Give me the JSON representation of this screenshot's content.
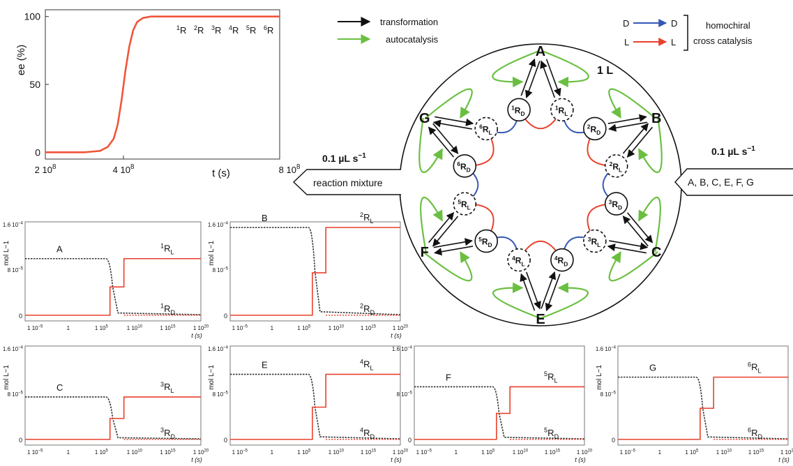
{
  "legend": {
    "transformation": "transformation",
    "autocatalysis": "autocatalysis",
    "d_from": "D",
    "d_to": "D",
    "l_from": "L",
    "l_to": "L",
    "homochiral_line1": "homochiral",
    "homochiral_line2": "cross catalysis",
    "colors": {
      "transformation": "#111111",
      "autocatalysis": "#6abf40",
      "d_cross": "#3657b5",
      "l_cross": "#e8412c"
    }
  },
  "reactor": {
    "volume": "1 L",
    "nodes": [
      {
        "letter": "A",
        "sup": "1",
        "sub": "D"
      },
      {
        "letter": "B",
        "sup": "2",
        "sub": "D"
      },
      {
        "letter": "C",
        "sup": "3",
        "sub": "D"
      },
      {
        "letter": "E",
        "sup": "4",
        "sub": "D"
      },
      {
        "letter": "F",
        "sup": "5",
        "sub": "D"
      },
      {
        "letter": "G",
        "sup": "6",
        "sub": "D"
      }
    ],
    "enantiomers": [
      {
        "sup": "1",
        "sub": "L"
      },
      {
        "sup": "2",
        "sub": "L"
      },
      {
        "sup": "3",
        "sub": "L"
      },
      {
        "sup": "4",
        "sub": "L"
      },
      {
        "sup": "5",
        "sub": "L"
      },
      {
        "sup": "6",
        "sub": "L"
      }
    ],
    "R": "R"
  },
  "inflow": {
    "rate": "0.1 µL s",
    "exp": "−1",
    "label": "A, B, C, E, F, G"
  },
  "outflow": {
    "rate": "0.1 µL s",
    "exp": "−1",
    "label": "reaction mixture"
  },
  "chart_data": [
    {
      "type": "line",
      "id": "ee",
      "xlabel": "t (s)",
      "ylabel": "ee (%)",
      "xticks": [
        {
          "v": 200000000.0,
          "base": "2 10",
          "exp": "8"
        },
        {
          "v": 400000000.0,
          "base": "4 10",
          "exp": "8"
        },
        {
          "v": 800000000.0,
          "base": "8 10",
          "exp": "8"
        }
      ],
      "yticks": [
        {
          "v": 0,
          "label": "0"
        },
        {
          "v": 50,
          "label": "50"
        },
        {
          "v": 100,
          "label": "100"
        }
      ],
      "xlim": [
        200000000.0,
        800000000.0
      ],
      "ylim": [
        -5,
        105
      ],
      "annotations": [
        "1R",
        "2R",
        "3R",
        "4R",
        "5R",
        "6R"
      ],
      "series": [
        {
          "color": "#f0553a",
          "x": [
            200000000.0,
            300000000.0,
            340000000.0,
            360000000.0,
            375000000.0,
            385000000.0,
            395000000.0,
            405000000.0,
            415000000.0,
            425000000.0,
            435000000.0,
            450000000.0,
            470000000.0,
            500000000.0,
            800000000.0
          ],
          "y": [
            0,
            0,
            1,
            4,
            10,
            20,
            38,
            60,
            78,
            90,
            96,
            99,
            100,
            100,
            100
          ]
        }
      ]
    },
    {
      "type": "line",
      "id": "A",
      "ylabel": "mol L−1",
      "xlabel": "t (s)",
      "label_reactant": "A",
      "label_L": {
        "sup": "1",
        "base": "R",
        "sub": "L"
      },
      "label_D": {
        "sup": "1",
        "base": "R",
        "sub": "D"
      },
      "yticks": [
        {
          "v": 0,
          "label": "0"
        },
        {
          "v": 8e-05,
          "base": "8 10",
          "exp": "−5"
        },
        {
          "v": 0.00016,
          "base": "1.6 10",
          "exp": "−4"
        }
      ],
      "xticks": [
        {
          "v": -5,
          "base": "1 10",
          "exp": "−5"
        },
        {
          "v": 0,
          "base": "1",
          "exp": ""
        },
        {
          "v": 5,
          "base": "1 10",
          "exp": "5"
        },
        {
          "v": 10,
          "base": "1 10",
          "exp": "10"
        },
        {
          "v": 15,
          "base": "1 10",
          "exp": "15"
        },
        {
          "v": 20,
          "base": "1 10",
          "exp": "20"
        }
      ],
      "ylim": [
        -1e-05,
        0.000165
      ],
      "xlim": [
        -6.5,
        20
      ],
      "plateau": 0.0001,
      "mid": 5e-05,
      "drop_start": 6.3,
      "drop_end": 7.5,
      "rise": 8.4
    },
    {
      "type": "line",
      "id": "B",
      "ylabel": "mol L−1",
      "xlabel": "t (s)",
      "label_reactant": "B",
      "label_L": {
        "sup": "2",
        "base": "R",
        "sub": "L"
      },
      "label_D": {
        "sup": "2",
        "base": "R",
        "sub": "D"
      },
      "yticks": [
        {
          "v": 0,
          "label": "0"
        },
        {
          "v": 8e-05,
          "base": "8 10",
          "exp": "−5"
        },
        {
          "v": 0.00016,
          "base": "1.6 10",
          "exp": "−4"
        }
      ],
      "xticks": [
        {
          "v": -5,
          "base": "1 10",
          "exp": "−5"
        },
        {
          "v": 0,
          "base": "1",
          "exp": ""
        },
        {
          "v": 5,
          "base": "1 10",
          "exp": "5"
        },
        {
          "v": 10,
          "base": "1 10",
          "exp": "10"
        },
        {
          "v": 15,
          "base": "1 10",
          "exp": "15"
        },
        {
          "v": 20,
          "base": "1 10",
          "exp": "20"
        }
      ],
      "ylim": [
        -1e-05,
        0.000165
      ],
      "xlim": [
        -6.5,
        20
      ],
      "plateau": 0.000155,
      "mid": 7.5e-05,
      "drop_start": 6.3,
      "drop_end": 7.5,
      "rise": 8.4
    },
    {
      "type": "line",
      "id": "C",
      "ylabel": "mol L−1",
      "xlabel": "t (s)",
      "label_reactant": "C",
      "label_L": {
        "sup": "3",
        "base": "R",
        "sub": "L"
      },
      "label_D": {
        "sup": "3",
        "base": "R",
        "sub": "D"
      },
      "yticks": [
        {
          "v": 0,
          "label": "0"
        },
        {
          "v": 8e-05,
          "base": "8 10",
          "exp": "−5"
        },
        {
          "v": 0.00016,
          "base": "1.6 10",
          "exp": "−4"
        }
      ],
      "xticks": [
        {
          "v": -5,
          "base": "1 10",
          "exp": "−5"
        },
        {
          "v": 0,
          "base": "1",
          "exp": ""
        },
        {
          "v": 5,
          "base": "1 10",
          "exp": "5"
        },
        {
          "v": 10,
          "base": "1 10",
          "exp": "10"
        },
        {
          "v": 15,
          "base": "1 10",
          "exp": "15"
        },
        {
          "v": 20,
          "base": "1 10",
          "exp": "20"
        }
      ],
      "ylim": [
        -1e-05,
        0.000165
      ],
      "xlim": [
        -6.5,
        20
      ],
      "plateau": 7.5e-05,
      "mid": 3.7e-05,
      "drop_start": 6.3,
      "drop_end": 7.5,
      "rise": 8.4
    },
    {
      "type": "line",
      "id": "E",
      "ylabel": "mol L−1",
      "xlabel": "t (s)",
      "label_reactant": "E",
      "label_L": {
        "sup": "4",
        "base": "R",
        "sub": "L"
      },
      "label_D": {
        "sup": "4",
        "base": "R",
        "sub": "D"
      },
      "yticks": [
        {
          "v": 0,
          "label": "0"
        },
        {
          "v": 8e-05,
          "base": "8 10",
          "exp": "−5"
        },
        {
          "v": 0.00016,
          "base": "1.6 10",
          "exp": "−4"
        }
      ],
      "xticks": [
        {
          "v": -5,
          "base": "1 10",
          "exp": "−5"
        },
        {
          "v": 0,
          "base": "1",
          "exp": ""
        },
        {
          "v": 5,
          "base": "1 10",
          "exp": "5"
        },
        {
          "v": 10,
          "base": "1 10",
          "exp": "10"
        },
        {
          "v": 15,
          "base": "1 10",
          "exp": "15"
        },
        {
          "v": 20,
          "base": "1 10",
          "exp": "20"
        }
      ],
      "ylim": [
        -1e-05,
        0.000165
      ],
      "xlim": [
        -6.5,
        20
      ],
      "plateau": 0.000115,
      "mid": 5.7e-05,
      "drop_start": 6.3,
      "drop_end": 7.5,
      "rise": 8.4
    },
    {
      "type": "line",
      "id": "F",
      "ylabel": "",
      "xlabel": "t (s)",
      "label_reactant": "F",
      "label_L": {
        "sup": "5",
        "base": "R",
        "sub": "L"
      },
      "label_D": {
        "sup": "5",
        "base": "R",
        "sub": "D"
      },
      "yticks": [
        {
          "v": 0,
          "label": "0"
        },
        {
          "v": 8e-05,
          "base": "8 10",
          "exp": "−5"
        },
        {
          "v": 0.00016,
          "base": "1.6 10",
          "exp": "−4"
        }
      ],
      "xticks": [
        {
          "v": -5,
          "base": "1 10",
          "exp": "−5"
        },
        {
          "v": 0,
          "base": "1",
          "exp": ""
        },
        {
          "v": 5,
          "base": "1 10",
          "exp": "5"
        },
        {
          "v": 10,
          "base": "1 10",
          "exp": "10"
        },
        {
          "v": 15,
          "base": "1 10",
          "exp": "15"
        },
        {
          "v": 20,
          "base": "1 10",
          "exp": "20"
        }
      ],
      "ylim": [
        -1e-05,
        0.000165
      ],
      "xlim": [
        -6.5,
        20
      ],
      "plateau": 9.3e-05,
      "mid": 4.6e-05,
      "drop_start": 6.3,
      "drop_end": 7.5,
      "rise": 8.4
    },
    {
      "type": "line",
      "id": "G",
      "ylabel": "mol L−1",
      "xlabel": "t (s)",
      "label_reactant": "G",
      "label_L": {
        "sup": "6",
        "base": "R",
        "sub": "L"
      },
      "label_D": {
        "sup": "6",
        "base": "R",
        "sub": "D"
      },
      "yticks": [
        {
          "v": 0,
          "label": "0"
        },
        {
          "v": 8e-05,
          "base": "8 10",
          "exp": "−5"
        },
        {
          "v": 0.00016,
          "base": "1.6 10",
          "exp": "−4"
        }
      ],
      "xticks": [
        {
          "v": -5,
          "base": "1 10",
          "exp": "−5"
        },
        {
          "v": 0,
          "base": "1",
          "exp": ""
        },
        {
          "v": 5,
          "base": "1 10",
          "exp": "5"
        },
        {
          "v": 10,
          "base": "1 10",
          "exp": "10"
        },
        {
          "v": 15,
          "base": "1 10",
          "exp": "15"
        },
        {
          "v": 20,
          "base": "1 10",
          "exp": "20"
        }
      ],
      "ylim": [
        -1e-05,
        0.000165
      ],
      "xlim": [
        -6.5,
        20
      ],
      "plateau": 0.00011,
      "mid": 5.5e-05,
      "drop_start": 6.3,
      "drop_end": 7.5,
      "rise": 8.4
    }
  ]
}
